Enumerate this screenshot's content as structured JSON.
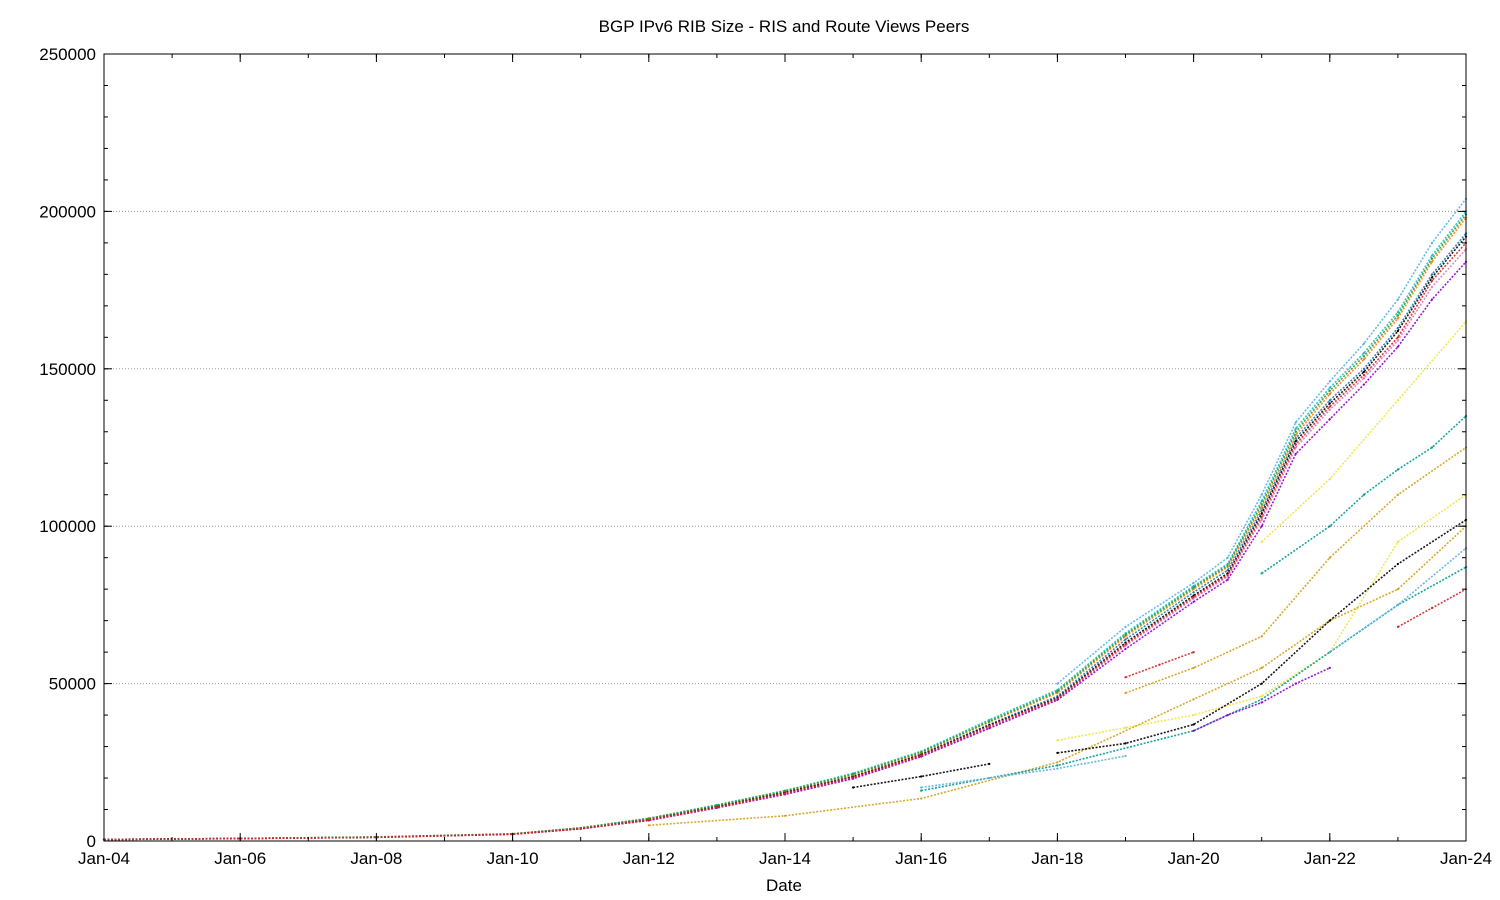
{
  "chart_data": {
    "type": "scatter",
    "title": "BGP IPv6 RIB Size - RIS and Route Views Peers",
    "xlabel": "Date",
    "ylabel": "",
    "xlim": [
      "2004-01",
      "2024-01"
    ],
    "ylim": [
      0,
      250000
    ],
    "x_ticks": [
      "Jan-04",
      "Jan-06",
      "Jan-08",
      "Jan-10",
      "Jan-12",
      "Jan-14",
      "Jan-16",
      "Jan-18",
      "Jan-20",
      "Jan-22",
      "Jan-24"
    ],
    "y_ticks": [
      0,
      50000,
      100000,
      150000,
      200000,
      250000
    ],
    "grid": "horizontal dotted",
    "legend": "none",
    "series": [
      {
        "color": "#1f77b4",
        "x": [
          "2004-01",
          "2006-01",
          "2008-01",
          "2010-01",
          "2011-01",
          "2012-01",
          "2013-01",
          "2014-01",
          "2015-01",
          "2016-01",
          "2017-01",
          "2018-01",
          "2019-01",
          "2020-01",
          "2020-07",
          "2021-01",
          "2021-07",
          "2022-01",
          "2022-07",
          "2023-01",
          "2023-07",
          "2024-01"
        ],
        "y": [
          500,
          800,
          1200,
          2200,
          4000,
          7000,
          11000,
          15500,
          20500,
          27500,
          37000,
          46000,
          64000,
          79000,
          86000,
          105000,
          128000,
          140000,
          150000,
          163000,
          180000,
          193000
        ]
      },
      {
        "color": "#17becf",
        "x": [
          "2004-01",
          "2006-01",
          "2008-01",
          "2010-01",
          "2011-01",
          "2012-01",
          "2013-01",
          "2014-01",
          "2015-01",
          "2016-01",
          "2017-01",
          "2018-01",
          "2019-01",
          "2020-01",
          "2020-07",
          "2021-01",
          "2021-07",
          "2022-01",
          "2022-07",
          "2023-01",
          "2023-07",
          "2024-01"
        ],
        "y": [
          500,
          800,
          1300,
          2300,
          4200,
          7200,
          11500,
          16000,
          21500,
          28500,
          38500,
          48000,
          66000,
          81000,
          88000,
          108000,
          131000,
          144000,
          155000,
          168000,
          186000,
          200000
        ]
      },
      {
        "color": "#e377c2",
        "x": [
          "2004-01",
          "2006-01",
          "2008-01",
          "2010-01",
          "2011-01",
          "2012-01",
          "2013-01",
          "2014-01",
          "2015-01",
          "2016-01",
          "2017-01",
          "2018-01",
          "2019-01",
          "2020-01",
          "2020-07",
          "2021-01",
          "2021-07",
          "2022-01",
          "2022-07",
          "2023-01",
          "2023-07",
          "2024-01"
        ],
        "y": [
          450,
          750,
          1150,
          2100,
          3800,
          6800,
          10800,
          15000,
          20000,
          27000,
          36000,
          45000,
          62000,
          77000,
          84000,
          102000,
          125000,
          137000,
          147000,
          159000,
          176000,
          188000
        ]
      },
      {
        "color": "#9400d3",
        "x": [
          "2004-01",
          "2006-01",
          "2008-01",
          "2010-01",
          "2011-01",
          "2012-01",
          "2013-01",
          "2014-01",
          "2015-01",
          "2016-01",
          "2017-01",
          "2018-01",
          "2019-01",
          "2020-01",
          "2020-07",
          "2021-01",
          "2021-07",
          "2022-01",
          "2022-07",
          "2023-01",
          "2023-07",
          "2024-01"
        ],
        "y": [
          480,
          780,
          1180,
          2150,
          3900,
          6500,
          10500,
          14800,
          19800,
          26800,
          35800,
          44800,
          61000,
          76000,
          83000,
          100000,
          123000,
          134000,
          145000,
          157000,
          172000,
          184000
        ]
      },
      {
        "color": "#ff7f0e",
        "x": [
          "2004-01",
          "2006-01",
          "2008-01",
          "2010-01",
          "2011-01",
          "2012-01",
          "2013-01",
          "2014-01",
          "2015-01",
          "2016-01",
          "2017-01",
          "2018-01",
          "2019-01",
          "2020-01",
          "2020-07",
          "2021-01",
          "2021-07",
          "2022-01",
          "2022-07",
          "2023-01",
          "2023-07",
          "2024-01"
        ],
        "y": [
          520,
          820,
          1250,
          2250,
          4100,
          7100,
          11200,
          15800,
          21000,
          28000,
          37800,
          47000,
          65000,
          80000,
          87000,
          106000,
          129000,
          142000,
          153000,
          166000,
          184000,
          198000
        ]
      },
      {
        "color": "#000000",
        "x": [
          "2004-01",
          "2006-01",
          "2008-01",
          "2010-01",
          "2011-01",
          "2012-01",
          "2013-01",
          "2014-01",
          "2015-01",
          "2016-01",
          "2017-01",
          "2018-01",
          "2019-01",
          "2020-01",
          "2020-07",
          "2021-01",
          "2021-07",
          "2022-01",
          "2022-07",
          "2023-01",
          "2023-07",
          "2024-01"
        ],
        "y": [
          490,
          790,
          1220,
          2200,
          4000,
          6900,
          11000,
          15400,
          20400,
          27400,
          36800,
          45500,
          63000,
          78000,
          85000,
          104000,
          127000,
          139000,
          149000,
          162000,
          179000,
          192000
        ]
      },
      {
        "color": "#2ca02c",
        "x": [
          "2004-01",
          "2006-01",
          "2008-01",
          "2010-01",
          "2011-01",
          "2012-01",
          "2013-01",
          "2014-01",
          "2015-01",
          "2016-01",
          "2017-01",
          "2018-01",
          "2019-01",
          "2020-01",
          "2020-07",
          "2021-01",
          "2021-07",
          "2022-01",
          "2022-07",
          "2023-01",
          "2023-07",
          "2024-01"
        ],
        "y": [
          510,
          810,
          1260,
          2260,
          4150,
          7150,
          11300,
          15900,
          21200,
          28200,
          38000,
          47500,
          65500,
          80500,
          87500,
          107000,
          130000,
          143000,
          154000,
          167000,
          185000,
          199000
        ]
      },
      {
        "color": "#d62728",
        "x": [
          "2004-01",
          "2006-01",
          "2008-01",
          "2010-01",
          "2011-01",
          "2012-01",
          "2013-01",
          "2014-01",
          "2015-01",
          "2016-01",
          "2017-01",
          "2018-01",
          "2019-01",
          "2020-01",
          "2020-07",
          "2021-01",
          "2021-07",
          "2022-01",
          "2022-07",
          "2023-01",
          "2023-07",
          "2024-01"
        ],
        "y": [
          470,
          770,
          1190,
          2180,
          3950,
          6700,
          10700,
          15200,
          20200,
          27200,
          36500,
          45200,
          62500,
          77500,
          84500,
          103000,
          126000,
          138000,
          148000,
          160000,
          178000,
          190000
        ]
      },
      {
        "color": "#5bb0e6",
        "x": [
          "2018-01",
          "2019-01",
          "2020-01",
          "2020-07",
          "2021-01",
          "2021-07",
          "2022-01",
          "2022-07",
          "2023-01",
          "2023-07",
          "2024-01"
        ],
        "y": [
          50000,
          68000,
          82000,
          90000,
          110000,
          133000,
          146000,
          158000,
          172000,
          190000,
          204000
        ]
      },
      {
        "color": "#000000",
        "x": [
          "2015-01",
          "2016-01",
          "2017-01"
        ],
        "y": [
          17000,
          20500,
          24500
        ]
      },
      {
        "color": "#f0e442",
        "x": [
          "2018-01",
          "2019-01",
          "2020-01",
          "2021-01",
          "2022-01",
          "2023-01",
          "2024-01"
        ],
        "y": [
          32000,
          36000,
          40000,
          46000,
          60000,
          95000,
          110000
        ]
      },
      {
        "color": "#d4a017",
        "x": [
          "2012-01",
          "2014-01",
          "2016-01",
          "2018-01",
          "2020-01",
          "2021-01",
          "2022-01",
          "2023-01",
          "2024-01"
        ],
        "y": [
          5000,
          8000,
          13500,
          25000,
          45000,
          55000,
          70000,
          80000,
          100000
        ]
      },
      {
        "color": "#009b95",
        "x": [
          "2016-01",
          "2018-01",
          "2020-01",
          "2021-01",
          "2022-01",
          "2023-01",
          "2024-01"
        ],
        "y": [
          16000,
          24000,
          35000,
          45000,
          60000,
          75000,
          87000
        ]
      },
      {
        "color": "#000000",
        "x": [
          "2018-01",
          "2019-01",
          "2020-01",
          "2021-01",
          "2022-01",
          "2023-01",
          "2024-01"
        ],
        "y": [
          28000,
          31000,
          37000,
          50000,
          70000,
          88000,
          102000
        ]
      },
      {
        "color": "#5bb0e6",
        "x": [
          "2016-01",
          "2017-01",
          "2018-01",
          "2019-01"
        ],
        "y": [
          17000,
          20000,
          23000,
          27000
        ]
      },
      {
        "color": "#d4a017",
        "x": [
          "2019-01",
          "2020-01",
          "2021-01",
          "2022-01",
          "2023-01",
          "2024-01"
        ],
        "y": [
          47000,
          55000,
          65000,
          90000,
          110000,
          125000
        ]
      },
      {
        "color": "#009b95",
        "x": [
          "2021-01",
          "2022-01",
          "2022-07",
          "2023-01",
          "2023-07",
          "2024-01"
        ],
        "y": [
          85000,
          100000,
          110000,
          118000,
          125000,
          135000
        ]
      },
      {
        "color": "#9400d3",
        "x": [
          "2020-01",
          "2020-07",
          "2021-01",
          "2021-07",
          "2022-01"
        ],
        "y": [
          35000,
          40000,
          44000,
          50000,
          55000
        ]
      },
      {
        "color": "#d62728",
        "x": [
          "2019-01",
          "2019-07",
          "2020-01"
        ],
        "y": [
          52000,
          56000,
          60000
        ]
      },
      {
        "color": "#f0e442",
        "x": [
          "2021-01",
          "2022-01",
          "2023-01",
          "2024-01"
        ],
        "y": [
          95000,
          115000,
          140000,
          165000
        ]
      },
      {
        "color": "#5bb0e6",
        "x": [
          "2022-01",
          "2023-01",
          "2024-01"
        ],
        "y": [
          60000,
          75000,
          93000
        ]
      },
      {
        "color": "#d62728",
        "x": [
          "2023-01",
          "2023-07",
          "2024-01"
        ],
        "y": [
          68000,
          74000,
          80000
        ]
      }
    ]
  }
}
